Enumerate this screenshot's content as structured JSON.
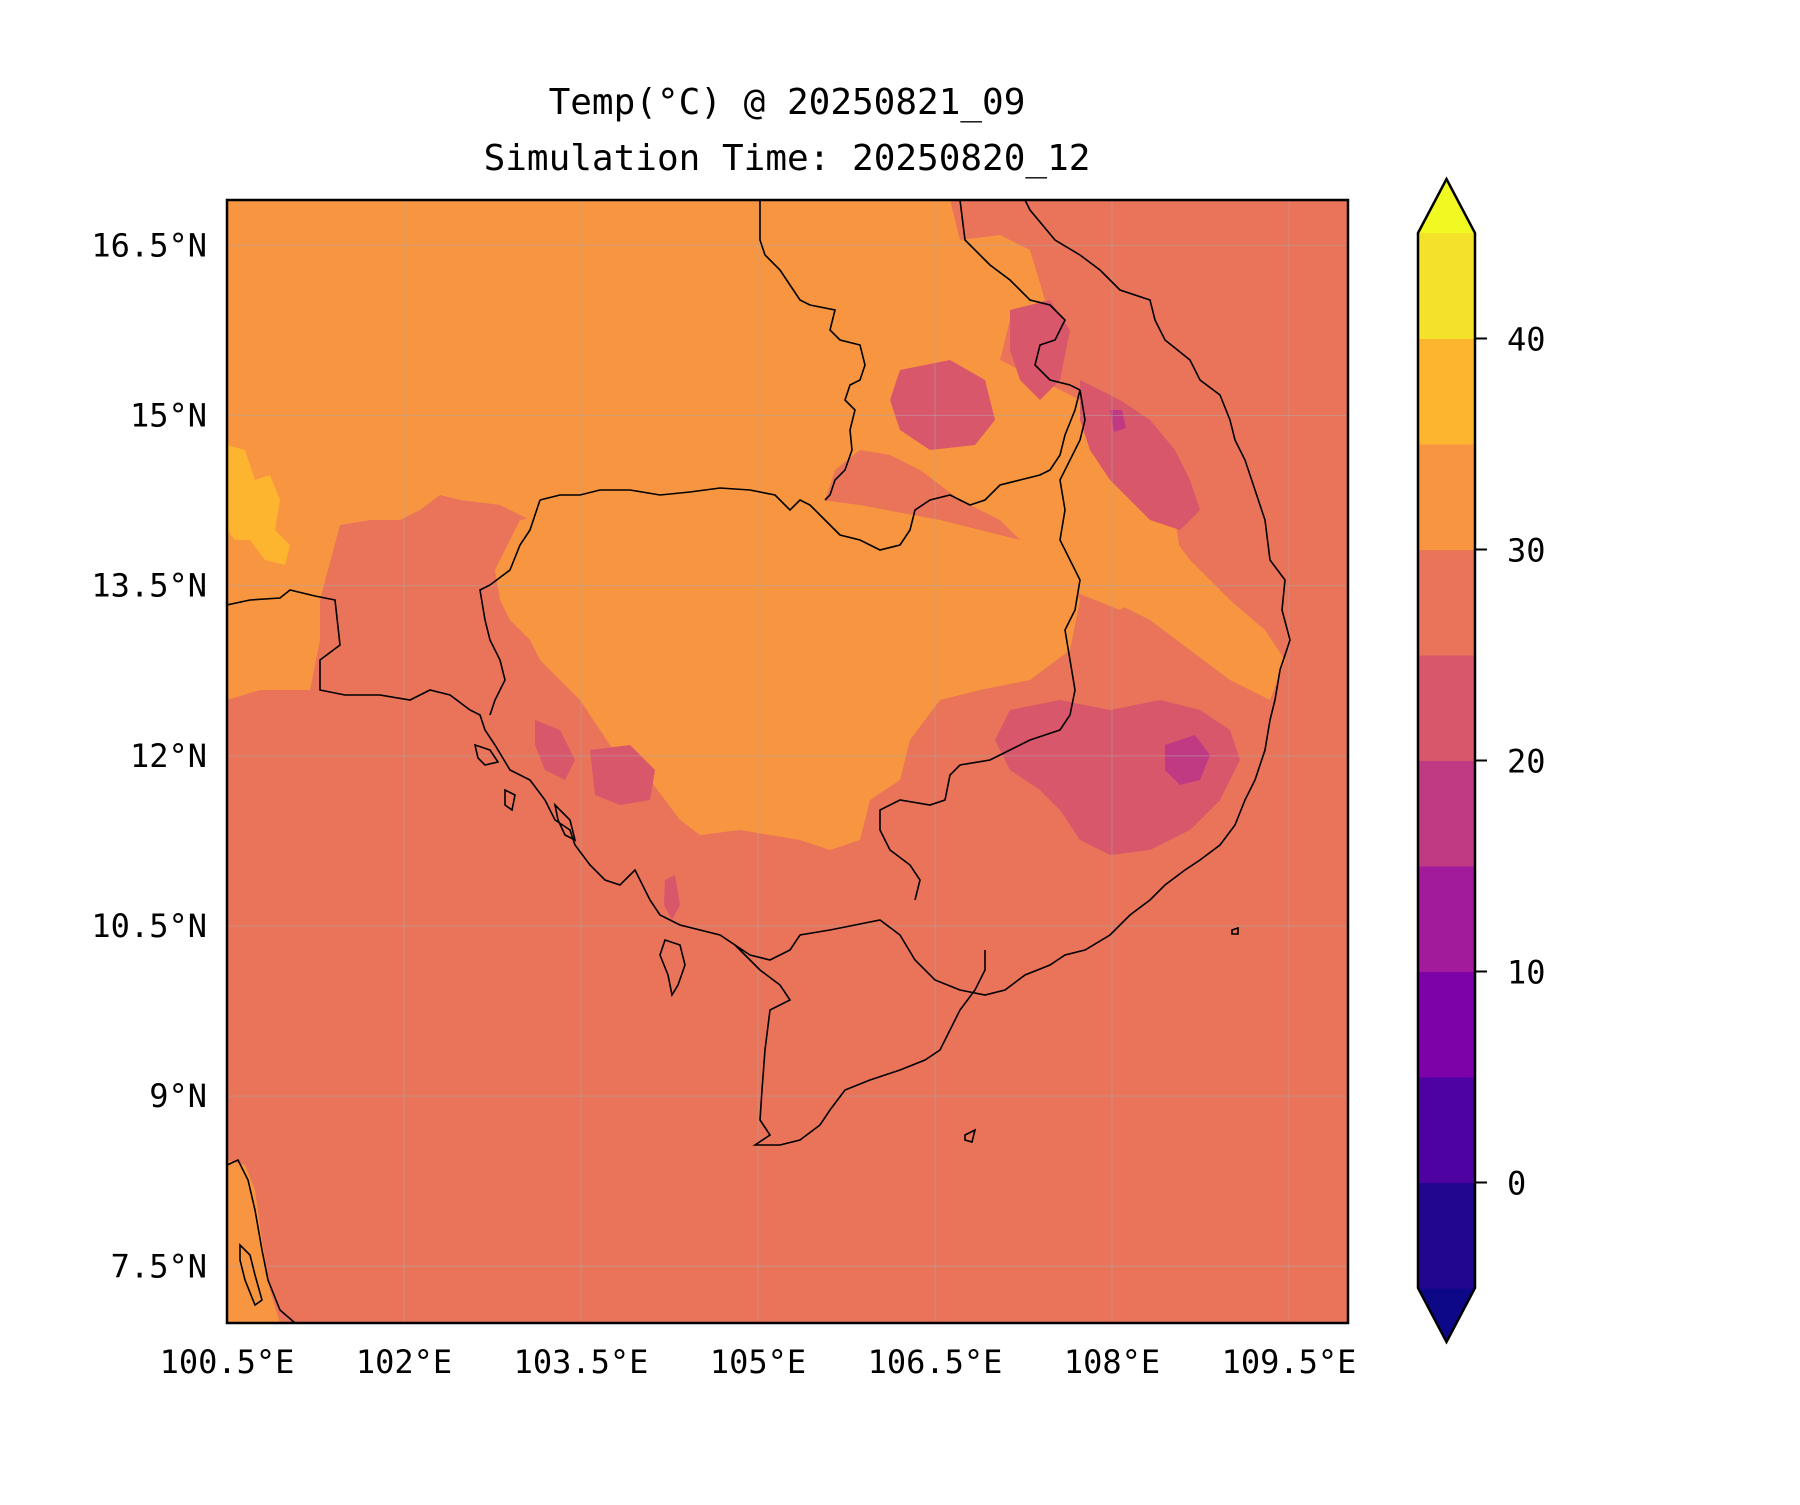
{
  "title": {
    "line1": "Temp(°C) @ 20250821_09",
    "line2": "Simulation Time: 20250820_12"
  },
  "map": {
    "lon_range": [
      100.5,
      110.0
    ],
    "lat_range": [
      7.0,
      16.9
    ],
    "grid": true,
    "coastline_color": "#000000",
    "ocean_color": "#e9745a"
  },
  "axes": {
    "x_ticks": [
      {
        "value": 100.5,
        "label": "100.5°E"
      },
      {
        "value": 102,
        "label": "102°E"
      },
      {
        "value": 103.5,
        "label": "103.5°E"
      },
      {
        "value": 105,
        "label": "105°E"
      },
      {
        "value": 106.5,
        "label": "106.5°E"
      },
      {
        "value": 108,
        "label": "108°E"
      },
      {
        "value": 109.5,
        "label": "109.5°E"
      }
    ],
    "y_ticks": [
      {
        "value": 16.5,
        "label": "16.5°N"
      },
      {
        "value": 15,
        "label": "15°N"
      },
      {
        "value": 13.5,
        "label": "13.5°N"
      },
      {
        "value": 12,
        "label": "12°N"
      },
      {
        "value": 10.5,
        "label": "10.5°N"
      },
      {
        "value": 9,
        "label": "9°N"
      },
      {
        "value": 7.5,
        "label": "7.5°N"
      }
    ]
  },
  "colorbar": {
    "levels": [
      -5,
      0,
      5,
      10,
      15,
      20,
      25,
      30,
      35,
      40,
      45
    ],
    "colors": [
      "#220690",
      "#4f02a2",
      "#7d03a8",
      "#a11b9b",
      "#c03a83",
      "#d8576b",
      "#e9745a",
      "#f79541",
      "#fdb42f",
      "#f3e12a"
    ],
    "under_color": "#0d0887",
    "over_color": "#f0f921",
    "ticks": [
      {
        "value": 0,
        "label": "0"
      },
      {
        "value": 10,
        "label": "10"
      },
      {
        "value": 20,
        "label": "20"
      },
      {
        "value": 30,
        "label": "30"
      },
      {
        "value": 40,
        "label": "40"
      }
    ]
  }
}
